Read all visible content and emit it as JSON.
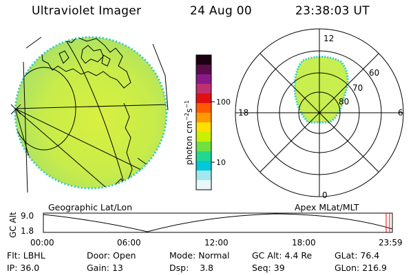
{
  "header": {
    "title": "Ultraviolet Imager",
    "date": "24 Aug 00",
    "time": "23:38:03 UT"
  },
  "colorbar": {
    "unit_label": "photon cm",
    "unit_exp1": "−2",
    "unit_mid": "s",
    "unit_exp2": "−1",
    "ticks": [
      "100",
      "10"
    ],
    "colors": [
      "#1a0010",
      "#5a0d4a",
      "#8a1a8a",
      "#c03070",
      "#e01010",
      "#ff5a00",
      "#ff9a00",
      "#ffe000",
      "#c8f000",
      "#70e040",
      "#20d890",
      "#00c8d8",
      "#a0e8ec",
      "#e8f8f8"
    ]
  },
  "polar": {
    "mlt_labels": [
      "12",
      "18",
      "6",
      "0"
    ],
    "lat_labels": [
      "60",
      "70",
      "80"
    ]
  },
  "map_labels": {
    "left": "Geographic Lat/Lon",
    "right": "Apex MLat/MLT"
  },
  "timeline": {
    "ylabel": "GC Alt",
    "y_ticks": [
      "9.0",
      "1.8"
    ],
    "x_ticks": [
      "00:00",
      "06:00",
      "12:00",
      "18:00",
      "23:59"
    ]
  },
  "info": {
    "row1": [
      {
        "label": "Flt:",
        "value": "LBHL"
      },
      {
        "label": "Door:",
        "value": "Open"
      },
      {
        "label": "Mode:",
        "value": "Normal"
      },
      {
        "label": "GC Alt:",
        "value": "4.4 Re"
      },
      {
        "label": "GLat:",
        "value": "76.4"
      }
    ],
    "row2": [
      {
        "label": "IP:",
        "value": "36.0"
      },
      {
        "label": "Gain:",
        "value": "13"
      },
      {
        "label": "Dsp:",
        "value": "3.8"
      },
      {
        "label": "Seq:",
        "value": "39"
      },
      {
        "label": "GLon:",
        "value": "216.9"
      }
    ]
  },
  "colors": {
    "aurora_fill": "#c6ee52",
    "aurora_edge": "#34ccc8",
    "marker": "#ff0000"
  }
}
